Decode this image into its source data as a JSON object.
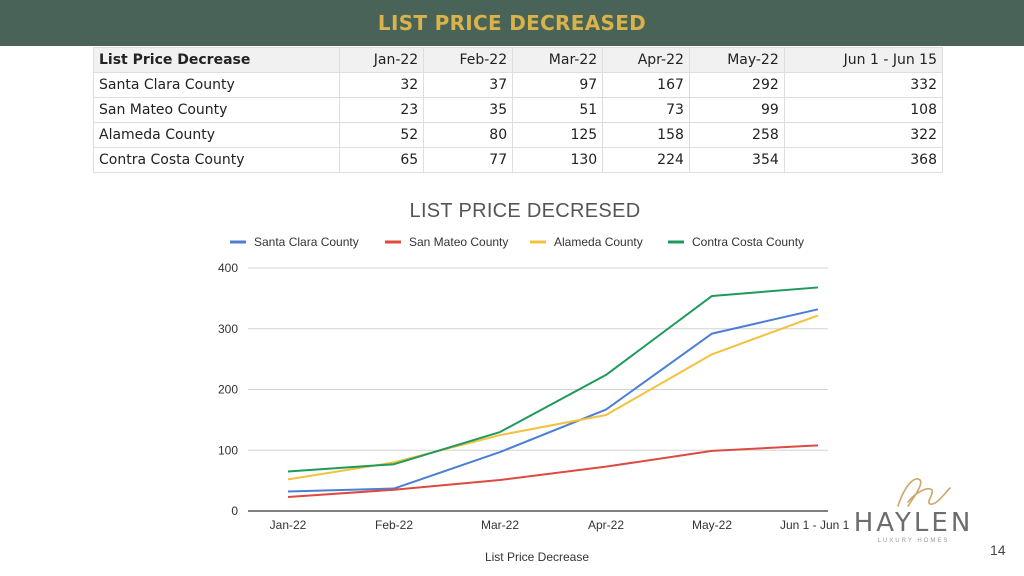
{
  "header": {
    "title": "LIST PRICE DECREASED"
  },
  "table": {
    "columns": [
      "List Price Decrease",
      "Jan-22",
      "Feb-22",
      "Mar-22",
      "Apr-22",
      "May-22",
      "Jun 1 - Jun 15"
    ],
    "rows": [
      [
        "Santa Clara County",
        "32",
        "37",
        "97",
        "167",
        "292",
        "332"
      ],
      [
        "San Mateo County",
        "23",
        "35",
        "51",
        "73",
        "99",
        "108"
      ],
      [
        "Alameda County",
        "52",
        "80",
        "125",
        "158",
        "258",
        "322"
      ],
      [
        "Contra Costa County",
        "65",
        "77",
        "130",
        "224",
        "354",
        "368"
      ]
    ]
  },
  "chart_data": {
    "type": "line",
    "title": "LIST PRICE DECRESED",
    "xlabel": "List Price Decrease",
    "ylabel": "",
    "categories": [
      "Jan-22",
      "Feb-22",
      "Mar-22",
      "Apr-22",
      "May-22",
      "Jun 1 - Jun 15"
    ],
    "ylim": [
      0,
      400
    ],
    "yticks": [
      0,
      100,
      200,
      300,
      400
    ],
    "grid": true,
    "legend_position": "top",
    "series": [
      {
        "name": "Santa Clara County",
        "color": "#4a7fd6",
        "values": [
          32,
          37,
          97,
          167,
          292,
          332
        ]
      },
      {
        "name": "San Mateo County",
        "color": "#dd4b3e",
        "values": [
          23,
          35,
          51,
          73,
          99,
          108
        ]
      },
      {
        "name": "Alameda County",
        "color": "#f2c23e",
        "values": [
          52,
          80,
          125,
          158,
          258,
          322
        ]
      },
      {
        "name": "Contra Costa County",
        "color": "#1e9a5c",
        "values": [
          65,
          77,
          130,
          224,
          354,
          368
        ]
      }
    ]
  },
  "logo": {
    "name": "HAYLEN",
    "tagline": "LUXURY HOMES"
  },
  "page_number": "14"
}
